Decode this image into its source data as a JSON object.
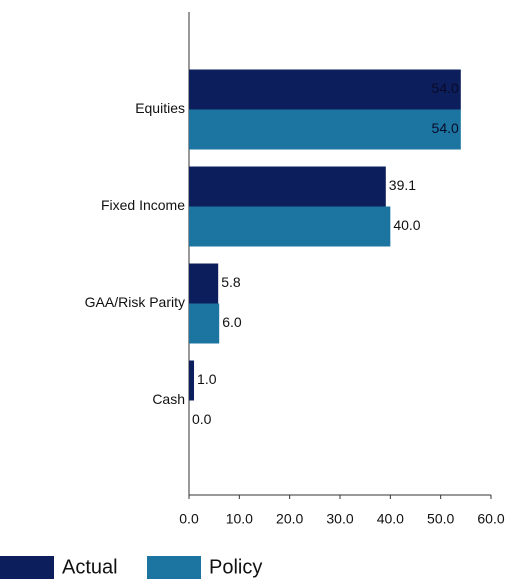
{
  "chart_data": {
    "type": "bar",
    "orientation": "horizontal",
    "categories": [
      "Equities",
      "Fixed Income",
      "GAA/Risk Parity",
      "Cash"
    ],
    "series": [
      {
        "name": "Actual",
        "color": "#0c1f5c",
        "values": [
          54.0,
          39.1,
          5.8,
          1.0
        ],
        "value_labels": [
          "54.0",
          "39.1",
          "5.8",
          "1.0"
        ]
      },
      {
        "name": "Policy",
        "color": "#1b75a0",
        "values": [
          54.0,
          40.0,
          6.0,
          0.0
        ],
        "value_labels": [
          "54.0",
          "40.0",
          "6.0",
          "0.0"
        ]
      }
    ],
    "xlim": [
      0,
      60
    ],
    "xticks": [
      {
        "value": 0,
        "label": "0.0"
      },
      {
        "value": 10,
        "label": "10.0"
      },
      {
        "value": 20,
        "label": "20.0"
      },
      {
        "value": 30,
        "label": "30.0"
      },
      {
        "value": 40,
        "label": "40.0"
      },
      {
        "value": 50,
        "label": "50.0"
      },
      {
        "value": 60,
        "label": "60.0"
      }
    ],
    "grid": false,
    "legend": "bottom"
  }
}
